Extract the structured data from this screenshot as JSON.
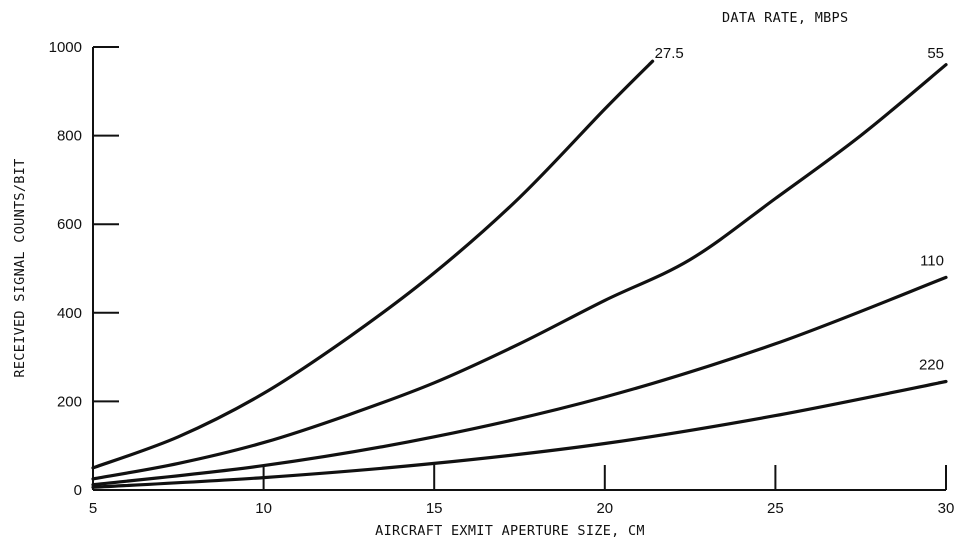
{
  "chart_data": {
    "type": "line",
    "xlabel": "AIRCRAFT EXMIT APERTURE SIZE, CM",
    "ylabel": "RECEIVED SIGNAL COUNTS/BIT",
    "legend_title": "DATA RATE, MBPS",
    "xlim": [
      5,
      30
    ],
    "ylim": [
      0,
      1000
    ],
    "x_ticks": [
      "5",
      "10",
      "15",
      "20",
      "25",
      "30"
    ],
    "y_ticks": [
      "0",
      "200",
      "400",
      "600",
      "800",
      "1000"
    ],
    "grid": false,
    "series": [
      {
        "name": "27.5",
        "x": [
          5,
          7.5,
          10,
          12.5,
          15,
          17.5,
          20,
          21.4
        ],
        "y": [
          50,
          120,
          218,
          345,
          490,
          660,
          860,
          968
        ]
      },
      {
        "name": "55",
        "x": [
          5,
          7.5,
          10,
          12.5,
          15,
          17.5,
          20,
          22.5,
          25,
          27.5,
          30
        ],
        "y": [
          25,
          60,
          107,
          170,
          242,
          330,
          428,
          520,
          658,
          800,
          960
        ]
      },
      {
        "name": "110",
        "x": [
          5,
          10,
          15,
          20,
          25,
          30
        ],
        "y": [
          12,
          55,
          120,
          210,
          330,
          480
        ]
      },
      {
        "name": "220",
        "x": [
          5,
          10,
          15,
          20,
          25,
          30
        ],
        "y": [
          6,
          28,
          60,
          105,
          168,
          245
        ]
      }
    ]
  }
}
